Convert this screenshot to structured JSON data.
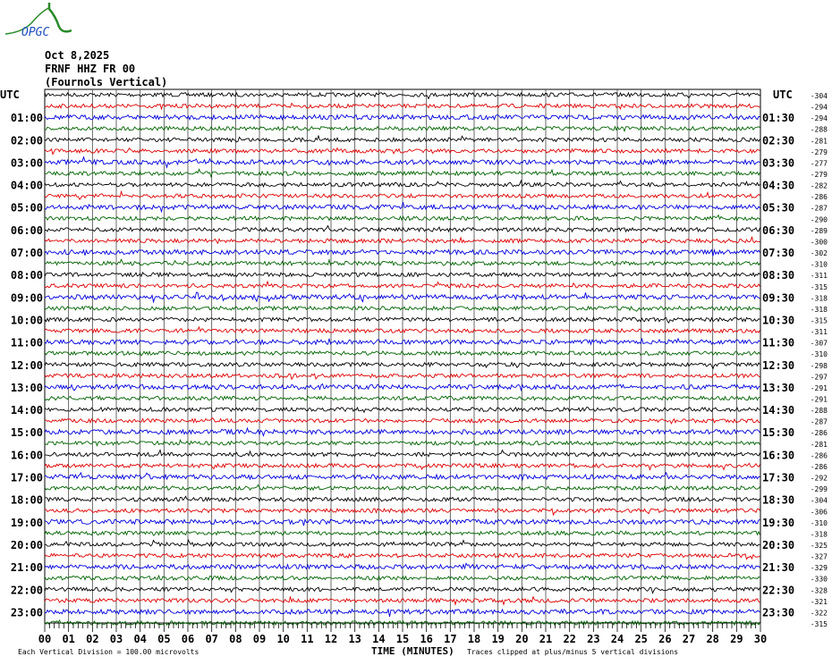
{
  "logo": {
    "text": "OPGC"
  },
  "header": {
    "date": "Oct 8,2025",
    "station": "FRNF HHZ FR 00",
    "location": "(Fournols Vertical)"
  },
  "chart_data": {
    "type": "line",
    "title": "Oct 8,2025",
    "left_axis_label": "UTC",
    "right_axis_label": "UTC",
    "left_hour_labels": [
      "01:00",
      "02:00",
      "03:00",
      "04:00",
      "05:00",
      "06:00",
      "07:00",
      "08:00",
      "09:00",
      "10:00",
      "11:00",
      "12:00",
      "13:00",
      "14:00",
      "15:00",
      "16:00",
      "17:00",
      "18:00",
      "19:00",
      "20:00",
      "21:00",
      "22:00",
      "23:00"
    ],
    "right_hour_labels": [
      "01:30",
      "02:30",
      "03:30",
      "04:30",
      "05:30",
      "06:30",
      "07:30",
      "08:30",
      "09:30",
      "10:30",
      "11:30",
      "12:30",
      "13:30",
      "14:30",
      "15:30",
      "16:30",
      "17:30",
      "18:30",
      "19:30",
      "20:30",
      "21:30",
      "22:30",
      "23:30"
    ],
    "trace_offsets": [
      "-304",
      "-294",
      "-294",
      "-288",
      "-281",
      "-279",
      "-277",
      "-279",
      "-282",
      "-286",
      "-287",
      "-290",
      "-289",
      "-300",
      "-302",
      "-310",
      "-311",
      "-315",
      "-318",
      "-318",
      "-315",
      "-311",
      "-307",
      "-310",
      "-298",
      "-297",
      "-291",
      "-291",
      "-288",
      "-287",
      "-286",
      "-281",
      "-286",
      "-286",
      "-292",
      "-299",
      "-304",
      "-306",
      "-310",
      "-318",
      "-325",
      "-327",
      "-329",
      "-330",
      "-328",
      "-321",
      "-322",
      "-315"
    ],
    "trace_colors": [
      "#000000",
      "#e00000",
      "#0000e0",
      "#006400"
    ],
    "trace_count": 48,
    "minutes_per_trace": 30,
    "xlabel": "TIME (MINUTES)",
    "xlim": [
      0,
      30
    ],
    "x_tick_labels": [
      "00",
      "01",
      "02",
      "03",
      "04",
      "05",
      "06",
      "07",
      "08",
      "09",
      "10",
      "11",
      "12",
      "13",
      "14",
      "15",
      "16",
      "17",
      "18",
      "19",
      "20",
      "21",
      "22",
      "23",
      "24",
      "25",
      "26",
      "27",
      "28",
      "29",
      "30"
    ],
    "grid": true,
    "events": [
      {
        "trace": "10:00",
        "minute": 6.4
      }
    ],
    "footer_left": "Each Vertical Division =  100.00 microvolts",
    "footer_right": "Traces clipped at plus/minus 5 vertical divisions"
  }
}
